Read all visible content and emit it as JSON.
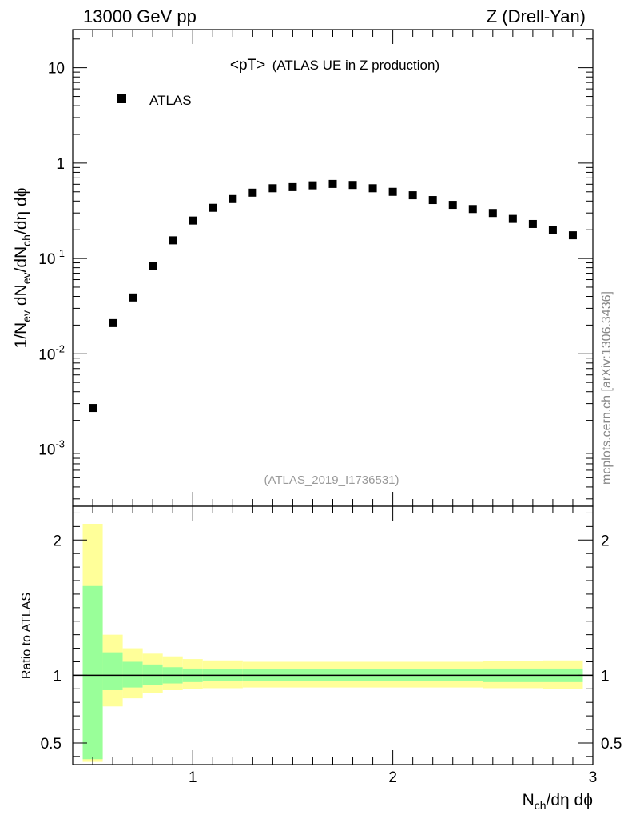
{
  "header": {
    "left": "13000 GeV pp",
    "right": "Z (Drell-Yan)"
  },
  "watermark": "mcplots.cern.ch [arXiv:1306.3436]",
  "analysis_id": "(ATLAS_2019_I1736531)",
  "chart_data": {
    "type": "scatter",
    "title_main": "<pT>",
    "title_sub": "(ATLAS UE in Z production)",
    "legend": [
      "ATLAS"
    ],
    "xlabel": {
      "main": "N",
      "sub": "ch",
      "rest": "/dη dϕ"
    },
    "ylabel": "1/N_ev dN_ev/dN_ch/dη dϕ",
    "x_ticks": [
      "1",
      "2",
      "3"
    ],
    "xlim": [
      0.4,
      3.0
    ],
    "ylim_log10": [
      -3.6,
      1.4
    ],
    "y_ticks": [
      {
        "base": "10",
        "exp": "-3",
        "log": -3
      },
      {
        "base": "10",
        "exp": "-2",
        "log": -2
      },
      {
        "base": "10",
        "exp": "-1",
        "log": -1
      },
      {
        "base": "1",
        "exp": "",
        "log": 0
      },
      {
        "base": "10",
        "exp": "",
        "log": 1
      }
    ],
    "series": [
      {
        "name": "ATLAS",
        "points": [
          [
            0.5,
            0.0027
          ],
          [
            0.6,
            0.021
          ],
          [
            0.7,
            0.039
          ],
          [
            0.8,
            0.084
          ],
          [
            0.9,
            0.155
          ],
          [
            1.0,
            0.25
          ],
          [
            1.1,
            0.34
          ],
          [
            1.2,
            0.42
          ],
          [
            1.3,
            0.49
          ],
          [
            1.4,
            0.545
          ],
          [
            1.5,
            0.56
          ],
          [
            1.6,
            0.585
          ],
          [
            1.7,
            0.605
          ],
          [
            1.8,
            0.59
          ],
          [
            1.9,
            0.545
          ],
          [
            2.0,
            0.5
          ],
          [
            2.1,
            0.46
          ],
          [
            2.2,
            0.41
          ],
          [
            2.3,
            0.365
          ],
          [
            2.4,
            0.33
          ],
          [
            2.5,
            0.3
          ],
          [
            2.6,
            0.26
          ],
          [
            2.7,
            0.23
          ],
          [
            2.8,
            0.2
          ],
          [
            2.9,
            0.175
          ]
        ]
      }
    ],
    "ratio": {
      "ylabel": "Ratio to ATLAS",
      "ylim": [
        0.34,
        2.25
      ],
      "y_ticks": [
        "0.5",
        "1",
        "2"
      ],
      "bins": [
        {
          "x0": 0.45,
          "x1": 0.55,
          "yellow": [
            0.36,
            2.12
          ],
          "green": [
            0.38,
            1.66
          ]
        },
        {
          "x0": 0.55,
          "x1": 0.65,
          "yellow": [
            0.77,
            1.3
          ],
          "green": [
            0.89,
            1.17
          ]
        },
        {
          "x0": 0.65,
          "x1": 0.75,
          "yellow": [
            0.83,
            1.2
          ],
          "green": [
            0.91,
            1.1
          ]
        },
        {
          "x0": 0.75,
          "x1": 0.85,
          "yellow": [
            0.87,
            1.16
          ],
          "green": [
            0.93,
            1.08
          ]
        },
        {
          "x0": 0.85,
          "x1": 0.95,
          "yellow": [
            0.89,
            1.14
          ],
          "green": [
            0.94,
            1.06
          ]
        },
        {
          "x0": 0.95,
          "x1": 1.05,
          "yellow": [
            0.9,
            1.12
          ],
          "green": [
            0.95,
            1.05
          ]
        },
        {
          "x0": 1.05,
          "x1": 1.25,
          "yellow": [
            0.905,
            1.11
          ],
          "green": [
            0.955,
            1.045
          ]
        },
        {
          "x0": 1.25,
          "x1": 2.45,
          "yellow": [
            0.91,
            1.1
          ],
          "green": [
            0.955,
            1.045
          ]
        },
        {
          "x0": 2.45,
          "x1": 2.75,
          "yellow": [
            0.905,
            1.105
          ],
          "green": [
            0.95,
            1.05
          ]
        },
        {
          "x0": 2.75,
          "x1": 2.95,
          "yellow": [
            0.9,
            1.11
          ],
          "green": [
            0.95,
            1.05
          ]
        }
      ]
    }
  }
}
